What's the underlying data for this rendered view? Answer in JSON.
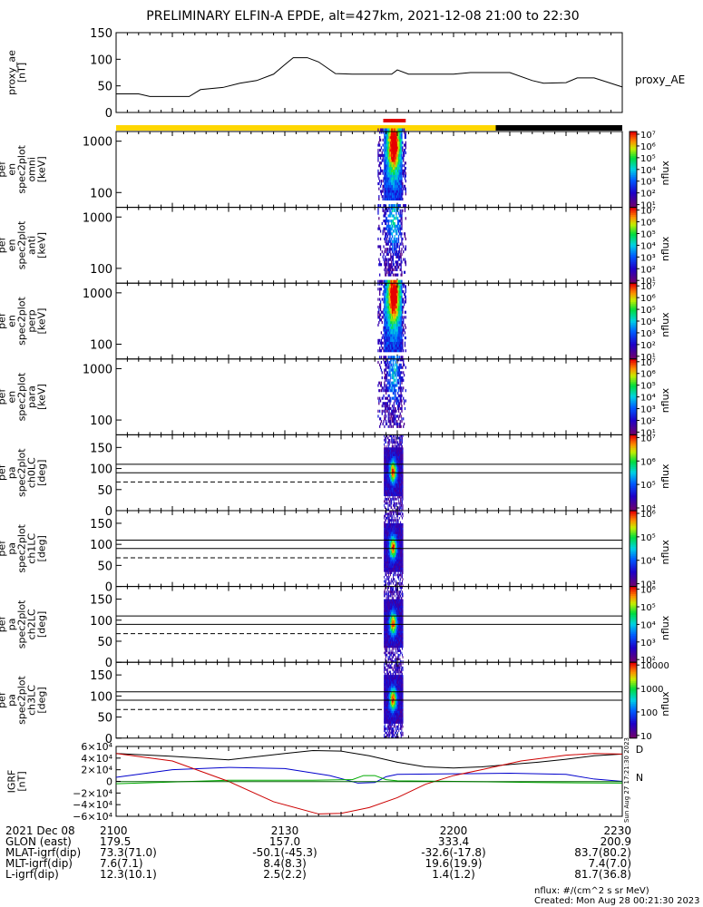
{
  "chart_data": {
    "type": "spectrogram",
    "title": "PRELIMINARY ELFIN-A EPDE, alt=427km, 2021-12-08 21:00 to 22:30",
    "time_axis": {
      "range_min": [
        0,
        90
      ],
      "tick_labels": [
        "2100",
        "2130",
        "2200",
        "2230"
      ]
    },
    "bars": {
      "science_zone": {
        "min": [
          47.5,
          51.5
        ],
        "color": "#e00000"
      },
      "sunlight": [
        {
          "min": [
            0,
            67.5
          ],
          "color": "#ffd700"
        },
        {
          "min": [
            67.5,
            90
          ],
          "color": "#000000"
        }
      ]
    },
    "proxy_ae": {
      "ylabel": "proxy_ae\n[nT]",
      "legend": "proxy_AE",
      "ylim": [
        0,
        150
      ],
      "yticks": [
        "0",
        "50",
        "100",
        "150"
      ],
      "t": [
        0,
        4,
        6,
        13,
        15,
        19,
        22,
        25,
        28,
        30,
        31.5,
        34,
        36,
        39,
        42,
        49,
        50,
        52,
        60,
        63,
        70,
        74,
        76,
        80,
        82,
        85,
        90
      ],
      "v": [
        35,
        35,
        30,
        30,
        43,
        47,
        55,
        60,
        72,
        90,
        103,
        103,
        95,
        73,
        72,
        72,
        80,
        72,
        72,
        75,
        75,
        60,
        55,
        56,
        65,
        65,
        48
      ]
    },
    "energy_panels": [
      {
        "ylabel": "ela\npef\nen\nspec2plot\nomni\n[keV]",
        "yticks": [
          "100",
          "1000"
        ],
        "intensity": 1.0
      },
      {
        "ylabel": "ela\npef\nen\nspec2plot\nanti\n[keV]",
        "yticks": [
          "100",
          "1000"
        ],
        "intensity": 0.45
      },
      {
        "ylabel": "ela\npef\nen\nspec2plot\nperp\n[keV]",
        "yticks": [
          "100",
          "1000"
        ],
        "intensity": 1.0
      },
      {
        "ylabel": "ela\npef\nen\nspec2plot\npara\n[keV]",
        "yticks": [
          "100",
          "1000"
        ],
        "intensity": 0.4
      }
    ],
    "pitch_panels": [
      {
        "ylabel": "ela\npef\npa\nspec2plot\nch0LC\n[deg]",
        "yticks": [
          "0",
          "50",
          "100",
          "150"
        ]
      },
      {
        "ylabel": "ela\npef\npa\nspec2plot\nch1LC\n[deg]",
        "yticks": [
          "0",
          "50",
          "100",
          "150"
        ]
      },
      {
        "ylabel": "ela\npef\npa\nspec2plot\nch2LC\n[deg]",
        "yticks": [
          "0",
          "50",
          "100",
          "150"
        ]
      },
      {
        "ylabel": "ela\npef\npa\nspec2plot\nch3LC\n[deg]",
        "yticks": [
          "0",
          "50",
          "100",
          "150"
        ]
      }
    ],
    "pitch_lines_deg": {
      "solid": [
        110,
        90
      ],
      "dashed": 68
    },
    "colorbars": [
      {
        "label": "nflux",
        "ticks": [
          "10¹",
          "10²",
          "10³",
          "10⁴",
          "10⁵",
          "10⁶",
          "10⁷"
        ]
      },
      {
        "label": "nflux",
        "ticks": [
          "10¹",
          "10²",
          "10³",
          "10⁴",
          "10⁵",
          "10⁶",
          "10⁷"
        ]
      },
      {
        "label": "nflux",
        "ticks": [
          "10¹",
          "10²",
          "10³",
          "10⁴",
          "10⁵",
          "10⁶",
          "10⁷"
        ]
      },
      {
        "label": "nflux",
        "ticks": [
          "10¹",
          "10²",
          "10³",
          "10⁴",
          "10⁵",
          "10⁶",
          "10⁷"
        ]
      },
      {
        "label": "nflux",
        "ticks": [
          "10⁴",
          "10⁵",
          "10⁶",
          "10⁷"
        ]
      },
      {
        "label": "nflux",
        "ticks": [
          "10³",
          "10⁴",
          "10⁵",
          "10⁶"
        ]
      },
      {
        "label": "nflux",
        "ticks": [
          "10²",
          "10³",
          "10⁴",
          "10⁵",
          "10⁶"
        ]
      },
      {
        "label": "nflux",
        "ticks": [
          "10",
          "100",
          "1000",
          "10000"
        ]
      }
    ],
    "bfield": {
      "ylabel": "IGRF\n[nT]",
      "ylim": [
        -60000,
        60000
      ],
      "yticks": [
        "6×10⁴",
        "4×10⁴",
        "2×10⁴",
        "0",
        "−2×10⁴",
        "−4×10⁴",
        "−6×10⁴"
      ],
      "tick_values": [
        60000,
        40000,
        20000,
        0,
        -20000,
        -40000,
        -60000
      ],
      "side_labels": [
        "D",
        "N"
      ],
      "side_note": "Sun Aug 27 17:21:30 2023",
      "series": [
        {
          "color": "#000000",
          "t": [
            0,
            10,
            20,
            30,
            35,
            40,
            45,
            50,
            55,
            60,
            65,
            70,
            75,
            80,
            85,
            90
          ],
          "v": [
            48000,
            43000,
            37000,
            48000,
            53000,
            52000,
            44000,
            33000,
            25000,
            23000,
            25000,
            29000,
            33000,
            38000,
            44000,
            47000
          ]
        },
        {
          "color": "#0000cc",
          "t": [
            0,
            10,
            20,
            30,
            38,
            43,
            46,
            48,
            50,
            60,
            70,
            80,
            85,
            90
          ],
          "v": [
            7000,
            20000,
            24000,
            22000,
            10000,
            -3000,
            -2000,
            8000,
            12000,
            13000,
            14000,
            12000,
            4000,
            0
          ]
        },
        {
          "color": "#00aa00",
          "t": [
            0,
            20,
            35,
            42,
            44,
            46,
            48,
            50,
            60,
            75,
            90
          ],
          "v": [
            -4000,
            2000,
            2000,
            3000,
            10000,
            10000,
            3000,
            1000,
            0,
            -2000,
            -3000
          ]
        },
        {
          "color": "#cc0000",
          "t": [
            0,
            10,
            20,
            28,
            36,
            40,
            45,
            50,
            55,
            60,
            65,
            72,
            80,
            85,
            90
          ],
          "v": [
            48000,
            35000,
            0,
            -35000,
            -56000,
            -55000,
            -45000,
            -28000,
            -5000,
            10000,
            20000,
            35000,
            45000,
            48000,
            47000
          ]
        },
        {
          "color": "#006600",
          "t": [
            0,
            90
          ],
          "v": [
            -300,
            -300
          ]
        }
      ]
    }
  },
  "footer": {
    "rows": [
      {
        "label": "2021 Dec 08",
        "values": [
          "2100",
          "2130",
          "2200",
          "2230"
        ]
      },
      {
        "label": "GLON (east)",
        "values": [
          "179.5",
          "157.0",
          "333.4",
          "200.9"
        ]
      },
      {
        "label": "MLAT-igrf(dip)",
        "values": [
          "73.3(71.0)",
          "-50.1(-45.3)",
          "-32.6(-17.8)",
          "83.7(80.2)"
        ]
      },
      {
        "label": "MLT-igrf(dip)",
        "values": [
          "7.6(7.1)",
          "8.4(8.3)",
          "19.6(19.9)",
          "7.4(7.0)"
        ]
      },
      {
        "label": "L-igrf(dip)",
        "values": [
          "12.3(10.1)",
          "2.5(2.2)",
          "1.4(1.2)",
          "81.7(36.8)"
        ]
      }
    ],
    "units_note": "nflux: #/(cm^2 s sr MeV)",
    "created_note": "Created: Mon Aug 28 00:21:30 2023"
  }
}
